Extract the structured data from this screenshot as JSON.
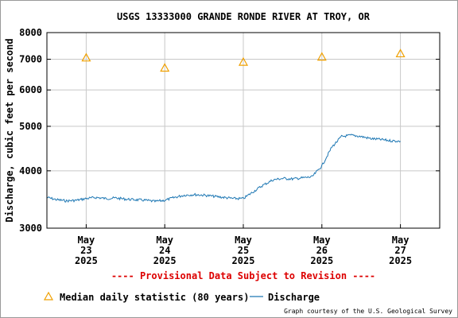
{
  "chart_data": {
    "type": "line",
    "title": "USGS 13333000 GRANDE RONDE RIVER AT TROY, OR",
    "ylabel": "Discharge, cubic feet per second",
    "xlabel": "",
    "y_scale": "log",
    "ylim": [
      3000,
      8000
    ],
    "y_ticks": [
      {
        "value": 3000,
        "label": "3000"
      },
      {
        "value": 4000,
        "label": "4000"
      },
      {
        "value": 5000,
        "label": "5000"
      },
      {
        "value": 6000,
        "label": "6000"
      },
      {
        "value": 7000,
        "label": "7000"
      },
      {
        "value": 8000,
        "label": "8000"
      }
    ],
    "xlim": [
      "2025-05-22T12:00",
      "2025-05-27T12:00"
    ],
    "x_ticks": [
      {
        "value": "2025-05-23",
        "month": "May",
        "day": "23",
        "year": "2025"
      },
      {
        "value": "2025-05-24",
        "month": "May",
        "day": "24",
        "year": "2025"
      },
      {
        "value": "2025-05-25",
        "month": "May",
        "day": "25",
        "year": "2025"
      },
      {
        "value": "2025-05-26",
        "month": "May",
        "day": "26",
        "year": "2025"
      },
      {
        "value": "2025-05-27",
        "month": "May",
        "day": "27",
        "year": "2025"
      }
    ],
    "grid": true,
    "legend_position": "bottom",
    "series": [
      {
        "name": "Discharge",
        "kind": "line",
        "color": "#1f78b4",
        "points": [
          {
            "x": "2025-05-22T12:00",
            "y": 3500
          },
          {
            "x": "2025-05-22T15:00",
            "y": 3460
          },
          {
            "x": "2025-05-22T18:00",
            "y": 3440
          },
          {
            "x": "2025-05-22T21:00",
            "y": 3450
          },
          {
            "x": "2025-05-23T00:00",
            "y": 3480
          },
          {
            "x": "2025-05-23T03:00",
            "y": 3500
          },
          {
            "x": "2025-05-23T06:00",
            "y": 3480
          },
          {
            "x": "2025-05-23T09:00",
            "y": 3490
          },
          {
            "x": "2025-05-23T12:00",
            "y": 3470
          },
          {
            "x": "2025-05-23T15:00",
            "y": 3460
          },
          {
            "x": "2025-05-23T18:00",
            "y": 3450
          },
          {
            "x": "2025-05-23T21:00",
            "y": 3430
          },
          {
            "x": "2025-05-24T00:00",
            "y": 3450
          },
          {
            "x": "2025-05-24T03:00",
            "y": 3500
          },
          {
            "x": "2025-05-24T06:00",
            "y": 3540
          },
          {
            "x": "2025-05-24T09:00",
            "y": 3550
          },
          {
            "x": "2025-05-24T12:00",
            "y": 3540
          },
          {
            "x": "2025-05-24T15:00",
            "y": 3520
          },
          {
            "x": "2025-05-24T18:00",
            "y": 3500
          },
          {
            "x": "2025-05-24T21:00",
            "y": 3480
          },
          {
            "x": "2025-05-25T00:00",
            "y": 3480
          },
          {
            "x": "2025-05-25T03:00",
            "y": 3600
          },
          {
            "x": "2025-05-25T06:00",
            "y": 3720
          },
          {
            "x": "2025-05-25T09:00",
            "y": 3820
          },
          {
            "x": "2025-05-25T12:00",
            "y": 3850
          },
          {
            "x": "2025-05-25T15:00",
            "y": 3840
          },
          {
            "x": "2025-05-25T18:00",
            "y": 3860
          },
          {
            "x": "2025-05-25T21:00",
            "y": 3880
          },
          {
            "x": "2025-05-26T00:00",
            "y": 4100
          },
          {
            "x": "2025-05-26T03:00",
            "y": 4500
          },
          {
            "x": "2025-05-26T06:00",
            "y": 4750
          },
          {
            "x": "2025-05-26T09:00",
            "y": 4780
          },
          {
            "x": "2025-05-26T12:00",
            "y": 4750
          },
          {
            "x": "2025-05-26T15:00",
            "y": 4700
          },
          {
            "x": "2025-05-26T18:00",
            "y": 4680
          },
          {
            "x": "2025-05-26T21:00",
            "y": 4650
          },
          {
            "x": "2025-05-27T00:00",
            "y": 4640
          }
        ]
      },
      {
        "name": "Median daily statistic (80 years)",
        "kind": "marker",
        "marker": "triangle",
        "color": "#f0a000",
        "points": [
          {
            "x": "2025-05-23T00:00",
            "y": 7050
          },
          {
            "x": "2025-05-24T00:00",
            "y": 6700
          },
          {
            "x": "2025-05-25T00:00",
            "y": 6900
          },
          {
            "x": "2025-05-26T00:00",
            "y": 7080
          },
          {
            "x": "2025-05-27T00:00",
            "y": 7200
          }
        ]
      }
    ],
    "annotation": "---- Provisional Data Subject to Revision ----",
    "annotation_color": "#dd0000",
    "legend": {
      "median_label": "Median daily statistic (80 years)",
      "discharge_label": "Discharge"
    },
    "credit": "Graph courtesy of the U.S. Geological Survey"
  }
}
